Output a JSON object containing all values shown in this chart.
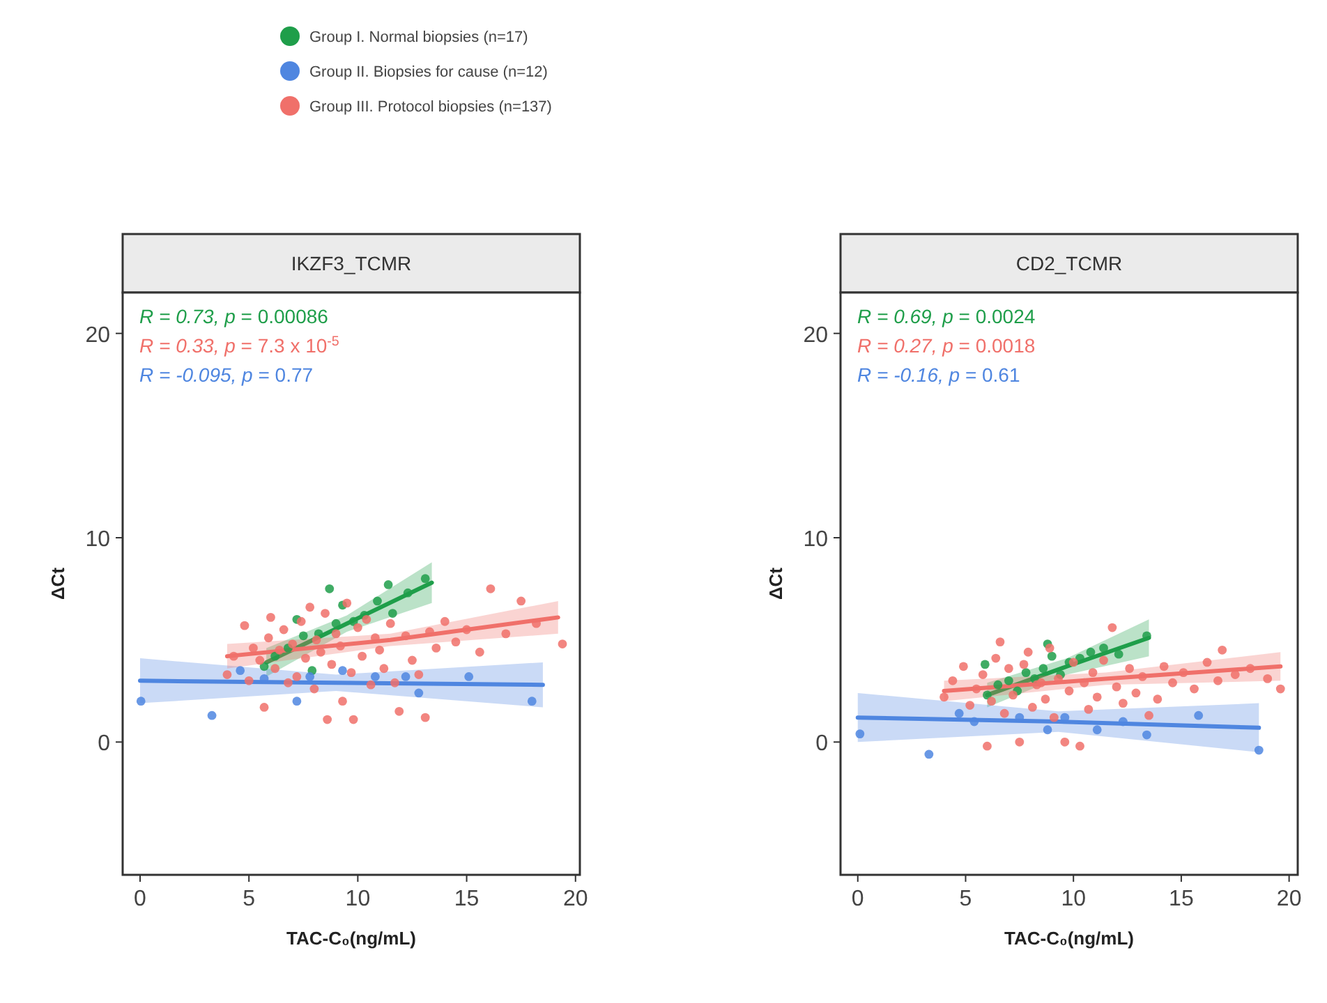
{
  "chart_data": [
    {
      "type": "scatter",
      "title": "IKZF3_TCMR",
      "xlabel": "TAC-C₀(ng/mL)",
      "ylabel": "ΔCt",
      "xlim": [
        -0.8,
        20.2
      ],
      "ylim": [
        -6.5,
        22
      ],
      "xticks": [
        0,
        5,
        10,
        15,
        20
      ],
      "yticks": [
        0,
        10,
        20
      ],
      "grid": false,
      "legend": "top",
      "annotations": [
        "R = 0.73, p = 0.00086",
        "R = 0.33, p = 7.3 x 10$^{-5}$",
        "R = -0.095, p = 0.77"
      ],
      "series": [
        {
          "name": "Group I. Normal biopsies (n=17)",
          "marker": "circle",
          "color": "#1f9e4a",
          "x": [
            8.7,
            7.2,
            5.7,
            7.9,
            11.4,
            13.1,
            10.9,
            11.6,
            9.3,
            6.2,
            6.8,
            7.5,
            8.2,
            9.0,
            9.8,
            10.3,
            12.3
          ],
          "values": [
            7.5,
            6.0,
            3.7,
            3.5,
            7.7,
            8.0,
            6.9,
            6.3,
            6.7,
            4.2,
            4.6,
            5.2,
            5.3,
            5.8,
            5.9,
            6.2,
            7.3
          ]
        },
        {
          "name": "Group II. Biopsies for cause (n=12)",
          "marker": "circle",
          "color": "#4f86e0",
          "x": [
            0.04,
            3.3,
            7.2,
            9.3,
            10.8,
            12.2,
            12.8,
            15.1,
            18.0,
            7.8,
            5.7,
            4.6
          ],
          "values": [
            2.0,
            1.3,
            2.0,
            3.5,
            3.2,
            3.2,
            2.4,
            3.2,
            2.0,
            3.2,
            3.1,
            3.5
          ]
        },
        {
          "name": "Group III. Protocol biopsies (n=137)",
          "marker": "circle",
          "color": "#f0706a",
          "x": [
            4.0,
            4.3,
            4.8,
            5.0,
            5.2,
            5.5,
            5.7,
            5.9,
            6.0,
            6.2,
            6.4,
            6.6,
            6.8,
            7.0,
            7.2,
            7.4,
            7.6,
            7.8,
            8.0,
            8.1,
            8.3,
            8.5,
            8.6,
            8.8,
            9.0,
            9.2,
            9.3,
            9.5,
            9.7,
            9.8,
            10.0,
            10.2,
            10.4,
            10.6,
            10.8,
            11.0,
            11.2,
            11.5,
            11.7,
            11.9,
            12.2,
            12.5,
            12.8,
            13.1,
            13.3,
            13.6,
            14.0,
            14.5,
            15.0,
            15.6,
            16.1,
            16.8,
            17.5,
            18.2,
            19.4
          ],
          "values": [
            3.3,
            4.2,
            5.7,
            3.0,
            4.6,
            4.0,
            1.7,
            5.1,
            6.1,
            3.6,
            4.5,
            5.5,
            2.9,
            4.8,
            3.2,
            5.9,
            4.1,
            6.6,
            2.6,
            5.0,
            4.4,
            6.3,
            1.1,
            3.8,
            5.3,
            4.7,
            2.0,
            6.8,
            3.4,
            1.1,
            5.6,
            4.2,
            6.0,
            2.8,
            5.1,
            4.5,
            3.6,
            5.8,
            2.9,
            1.5,
            5.2,
            4.0,
            3.3,
            1.2,
            5.4,
            4.6,
            5.9,
            4.9,
            5.5,
            4.4,
            7.5,
            5.3,
            6.9,
            5.8,
            4.8
          ]
        },
        {
          "type": "line",
          "marker": "none",
          "color": "#1f9e4a",
          "x": [
            5.8,
            9.5,
            13.4
          ],
          "values": [
            3.9,
            5.8,
            7.8
          ],
          "lower": [
            3.2,
            5.4,
            6.8
          ],
          "upper": [
            4.6,
            6.2,
            8.8
          ]
        },
        {
          "type": "line",
          "marker": "none",
          "color": "#4f86e0",
          "x": [
            0,
            9,
            18.5
          ],
          "values": [
            3.0,
            2.9,
            2.8
          ],
          "lower": [
            1.9,
            2.5,
            1.7
          ],
          "upper": [
            4.1,
            3.3,
            3.9
          ]
        },
        {
          "type": "line",
          "marker": "none",
          "color": "#f0706a",
          "x": [
            4,
            11.5,
            19.2
          ],
          "values": [
            4.2,
            5.0,
            6.1
          ],
          "lower": [
            3.6,
            4.7,
            5.3
          ],
          "upper": [
            4.8,
            5.3,
            6.9
          ]
        }
      ]
    },
    {
      "type": "scatter",
      "title": "CD2_TCMR",
      "xlabel": "TAC-C₀(ng/mL)",
      "ylabel": "ΔCt",
      "xlim": [
        -0.8,
        20.4
      ],
      "ylim": [
        -6.5,
        22
      ],
      "xticks": [
        0,
        5,
        10,
        15,
        20
      ],
      "yticks": [
        0,
        10,
        20
      ],
      "grid": false,
      "annotations": [
        "R = 0.69, p = 0.0024",
        "R = 0.27, p = 0.0018",
        "R = -0.16, p = 0.61"
      ],
      "series": [
        {
          "marker": "circle",
          "color": "#1f9e4a",
          "x": [
            6.0,
            6.5,
            7.0,
            7.4,
            7.8,
            8.2,
            8.6,
            9.0,
            9.4,
            9.8,
            10.3,
            10.8,
            11.4,
            12.1,
            13.4,
            5.9,
            8.8
          ],
          "values": [
            2.3,
            2.8,
            3.0,
            2.5,
            3.4,
            3.1,
            3.6,
            4.2,
            3.3,
            3.9,
            4.1,
            4.4,
            4.6,
            4.3,
            5.2,
            3.8,
            4.8
          ]
        },
        {
          "marker": "circle",
          "color": "#4f86e0",
          "x": [
            0.1,
            3.3,
            18.6,
            15.8,
            13.4,
            11.1,
            12.3,
            8.8,
            9.6,
            5.4,
            7.5,
            4.7
          ],
          "values": [
            0.4,
            -0.6,
            -0.4,
            1.3,
            0.35,
            0.6,
            1.0,
            0.6,
            1.2,
            1.0,
            1.2,
            1.4
          ]
        },
        {
          "marker": "circle",
          "color": "#f0706a",
          "x": [
            4.0,
            4.4,
            4.9,
            5.2,
            5.5,
            5.8,
            6.0,
            6.2,
            6.4,
            6.6,
            6.8,
            7.0,
            7.2,
            7.5,
            7.7,
            7.9,
            8.1,
            8.3,
            8.5,
            8.7,
            8.9,
            9.1,
            9.3,
            9.6,
            9.8,
            10.0,
            10.3,
            10.5,
            10.7,
            10.9,
            11.1,
            11.4,
            11.8,
            12.0,
            12.3,
            12.6,
            12.9,
            13.2,
            13.5,
            13.9,
            14.2,
            14.6,
            15.1,
            15.6,
            16.2,
            16.7,
            16.9,
            17.5,
            18.2,
            19.0,
            19.6
          ],
          "values": [
            2.2,
            3.0,
            3.7,
            1.8,
            2.6,
            3.3,
            -0.2,
            2.0,
            4.1,
            4.9,
            1.4,
            3.6,
            2.3,
            0.0,
            3.8,
            4.4,
            1.7,
            2.8,
            2.9,
            2.1,
            4.6,
            1.2,
            3.1,
            0.0,
            2.5,
            3.9,
            -0.2,
            2.9,
            1.6,
            3.4,
            2.2,
            4.0,
            5.6,
            2.7,
            1.9,
            3.6,
            2.4,
            3.2,
            1.3,
            2.1,
            3.7,
            2.9,
            3.4,
            2.6,
            3.9,
            3.0,
            4.5,
            3.3,
            3.6,
            3.1,
            2.6
          ]
        },
        {
          "type": "line",
          "marker": "none",
          "color": "#1f9e4a",
          "x": [
            6,
            9.7,
            13.5
          ],
          "values": [
            2.3,
            3.7,
            5.1
          ],
          "lower": [
            1.7,
            3.3,
            4.2
          ],
          "upper": [
            2.9,
            4.1,
            6.0
          ]
        },
        {
          "type": "line",
          "marker": "none",
          "color": "#4f86e0",
          "x": [
            0,
            9.3,
            18.6
          ],
          "values": [
            1.2,
            1.0,
            0.7
          ],
          "lower": [
            0.0,
            0.5,
            -0.5
          ],
          "upper": [
            2.4,
            1.5,
            1.9
          ]
        },
        {
          "type": "line",
          "marker": "none",
          "color": "#f0706a",
          "x": [
            4,
            11.5,
            19.6
          ],
          "values": [
            2.5,
            3.1,
            3.7
          ],
          "lower": [
            2.0,
            2.8,
            3.0
          ],
          "upper": [
            3.0,
            3.4,
            4.4
          ]
        }
      ]
    }
  ]
}
